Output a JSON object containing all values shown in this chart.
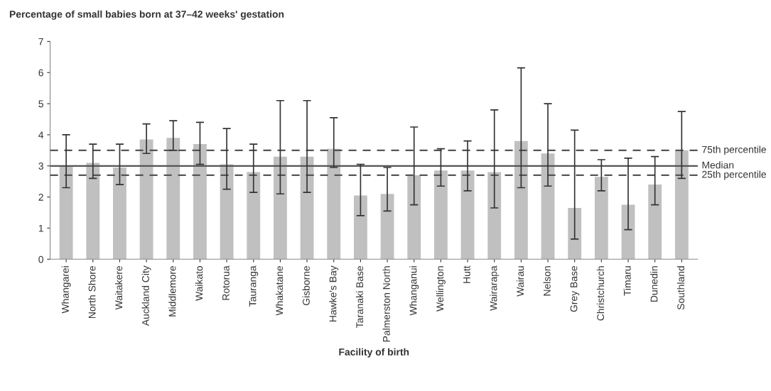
{
  "chart_data": {
    "type": "bar",
    "title": "Percentage of small babies born at 37–42 weeks' gestation",
    "xlabel": "Facility of birth",
    "categories": [
      "Whangarei",
      "North Shore",
      "Waitakere",
      "Auckland City",
      "Middlemore",
      "Waikato",
      "Rotorua",
      "Tauranga",
      "Whakatane",
      "Gisborne",
      "Hawke's Bay",
      "Taranaki Base",
      "Palmerston North",
      "Whanganui",
      "Wellington",
      "Hutt",
      "Wairarapa",
      "Wairau",
      "Nelson",
      "Grey Base",
      "Christchurch",
      "Timaru",
      "Dunedin",
      "Southland"
    ],
    "values": [
      3.0,
      3.1,
      2.95,
      3.85,
      3.9,
      3.7,
      3.05,
      2.8,
      3.3,
      3.3,
      3.55,
      2.05,
      2.1,
      2.7,
      2.85,
      2.85,
      2.8,
      3.8,
      3.4,
      1.65,
      2.65,
      1.75,
      2.4,
      3.5
    ],
    "errors": [
      [
        2.3,
        4.0
      ],
      [
        2.6,
        3.7
      ],
      [
        2.4,
        3.7
      ],
      [
        3.4,
        4.35
      ],
      [
        3.5,
        4.45
      ],
      [
        3.05,
        4.4
      ],
      [
        2.25,
        4.2
      ],
      [
        2.15,
        3.7
      ],
      [
        2.1,
        5.1
      ],
      [
        2.15,
        5.1
      ],
      [
        2.95,
        4.55
      ],
      [
        1.4,
        3.05
      ],
      [
        1.55,
        2.95
      ],
      [
        1.75,
        4.25
      ],
      [
        2.35,
        3.55
      ],
      [
        2.2,
        3.8
      ],
      [
        1.65,
        4.8
      ],
      [
        2.3,
        6.15
      ],
      [
        2.35,
        5.0
      ],
      [
        0.65,
        4.15
      ],
      [
        2.2,
        3.2
      ],
      [
        0.95,
        3.25
      ],
      [
        1.75,
        3.3
      ],
      [
        2.6,
        4.75
      ]
    ],
    "color": "#c0c0c0",
    "ylim": [
      0,
      7
    ],
    "yticks": [
      0,
      1,
      2,
      3,
      4,
      5,
      6,
      7
    ],
    "grid": false,
    "ref_lines": [
      {
        "axis": "y",
        "value": 3.5,
        "label": "75th percentile",
        "line_style": "dashed",
        "color": "#555555"
      },
      {
        "axis": "y",
        "value": 3.0,
        "label": "Median",
        "line_style": "solid",
        "color": "#555555"
      },
      {
        "axis": "y",
        "value": 2.7,
        "label": "25th percentile",
        "line_style": "dashed",
        "color": "#555555"
      }
    ]
  }
}
